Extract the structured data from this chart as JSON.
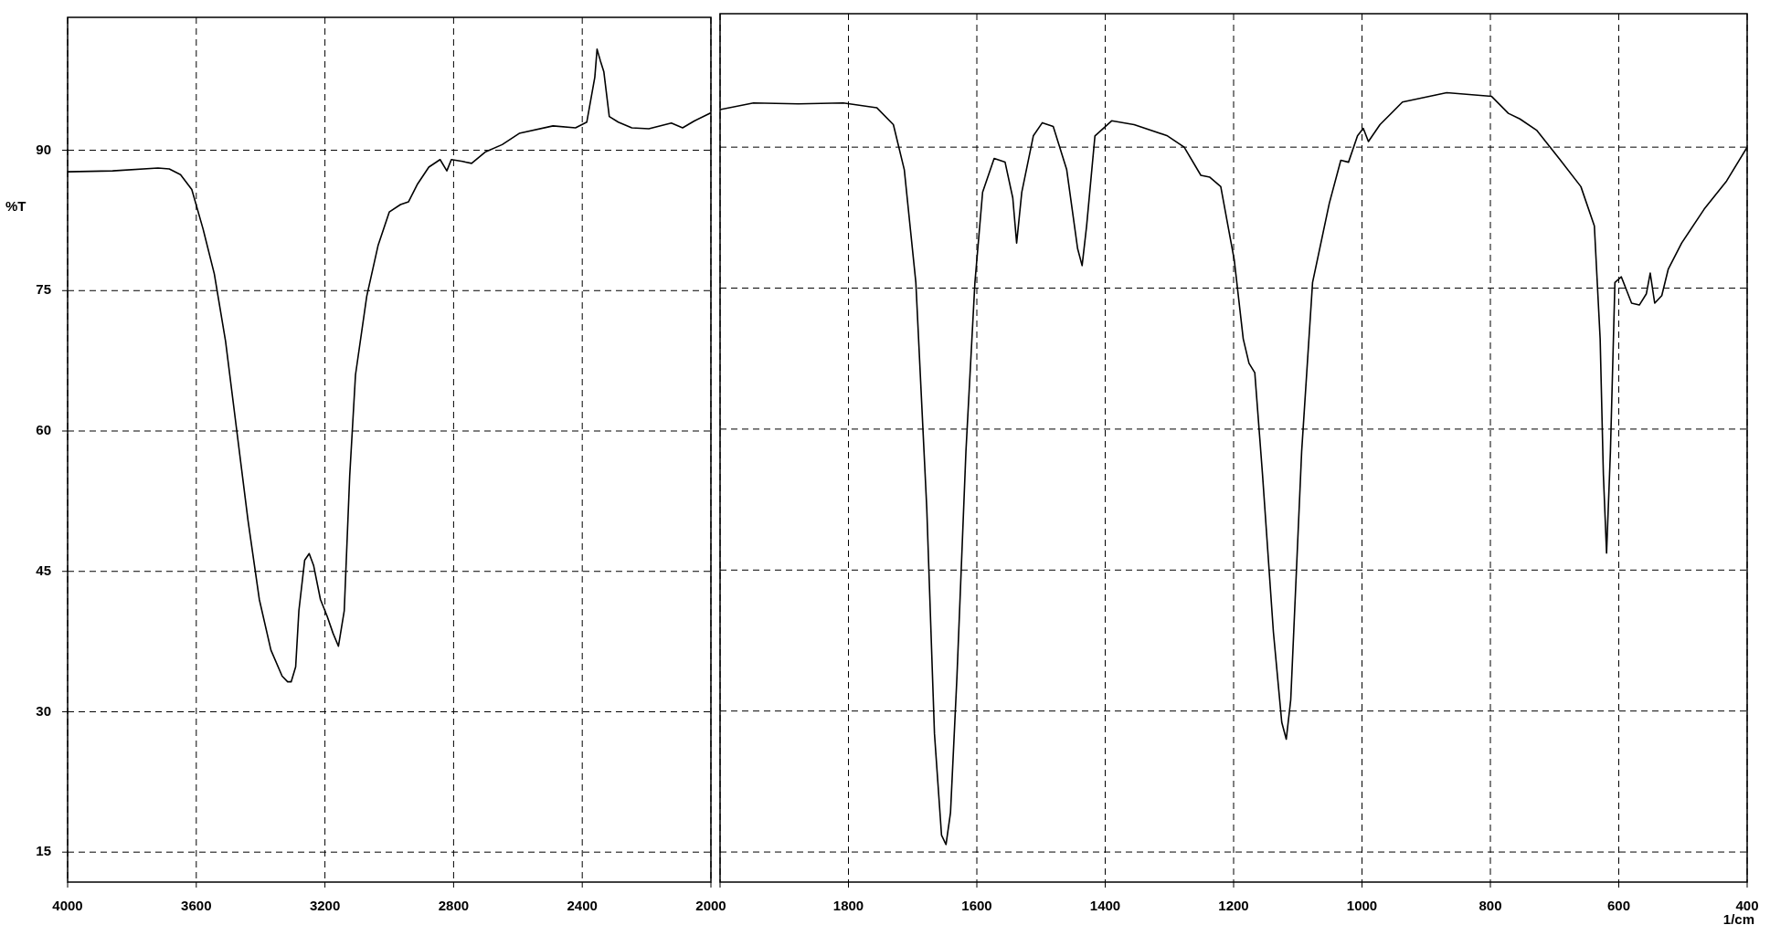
{
  "chart_data": [
    {
      "type": "line",
      "ylabel": "%T",
      "color": "#000000",
      "grid": true,
      "x": [
        4000,
        3860,
        3719,
        3684,
        3649,
        3614,
        3579,
        3544,
        3509,
        3474,
        3439,
        3404,
        3368,
        3333,
        3316,
        3305,
        3291,
        3281,
        3263,
        3249,
        3235,
        3214,
        3193,
        3175,
        3158,
        3140,
        3123,
        3105,
        3070,
        3035,
        3000,
        2965,
        2940,
        2912,
        2877,
        2842,
        2821,
        2807,
        2772,
        2744,
        2702,
        2649,
        2596,
        2491,
        2421,
        2386,
        2361,
        2354,
        2344,
        2333,
        2316,
        2288,
        2246,
        2193,
        2123,
        2088,
        2053,
        2000
      ],
      "values": [
        87.7,
        87.8,
        88.1,
        88.0,
        87.4,
        85.8,
        81.6,
        76.8,
        69.6,
        60.0,
        50.4,
        42.0,
        36.6,
        33.8,
        33.2,
        33.2,
        34.8,
        40.8,
        46.2,
        46.9,
        45.6,
        42.0,
        40.2,
        38.4,
        37.0,
        40.8,
        55.2,
        66.0,
        74.4,
        79.8,
        83.4,
        84.2,
        84.5,
        86.4,
        88.2,
        89.0,
        87.8,
        89.0,
        88.8,
        88.6,
        89.8,
        90.6,
        91.8,
        92.6,
        92.4,
        93.0,
        97.8,
        100.8,
        99.6,
        98.4,
        93.6,
        93.0,
        92.4,
        92.3,
        92.9,
        92.4,
        93.1,
        94.0
      ],
      "xlim": [
        4000,
        2000
      ],
      "xticks": [
        4000,
        3600,
        3200,
        2800,
        2400,
        2000
      ],
      "ylim": [
        11.8,
        104.2
      ],
      "yticks": [
        15,
        30,
        45,
        60,
        75,
        90
      ]
    },
    {
      "type": "line",
      "xlabel": "1/cm",
      "color": "#000000",
      "grid": true,
      "tick_labels": "x",
      "x": [
        2000,
        1948,
        1878,
        1808,
        1756,
        1730,
        1713,
        1695,
        1678,
        1666,
        1655,
        1648,
        1641,
        1631,
        1617,
        1603,
        1591,
        1573,
        1556,
        1544,
        1538,
        1530,
        1512,
        1498,
        1481,
        1460,
        1443,
        1436,
        1429,
        1416,
        1390,
        1355,
        1303,
        1277,
        1251,
        1237,
        1220,
        1199,
        1185,
        1176,
        1167,
        1155,
        1138,
        1125,
        1118,
        1111,
        1094,
        1077,
        1051,
        1033,
        1021,
        1007,
        998,
        990,
        972,
        937,
        868,
        798,
        772,
        754,
        728,
        693,
        659,
        638,
        629,
        624,
        619,
        613,
        606,
        596,
        580,
        568,
        557,
        551,
        544,
        533,
        523,
        502,
        467,
        432,
        400
      ],
      "values": [
        94.0,
        94.7,
        94.6,
        94.7,
        94.2,
        92.4,
        87.6,
        75.6,
        51.6,
        27.6,
        16.8,
        15.8,
        19.2,
        33.6,
        57.6,
        75.6,
        85.2,
        88.8,
        88.4,
        84.6,
        79.8,
        85.2,
        91.2,
        92.6,
        92.2,
        87.6,
        79.2,
        77.4,
        81.6,
        91.2,
        92.8,
        92.4,
        91.2,
        90.0,
        87.0,
        86.8,
        85.8,
        78.0,
        69.6,
        67.0,
        66.0,
        55.2,
        38.4,
        28.8,
        27.0,
        31.2,
        57.6,
        75.6,
        84.0,
        88.6,
        88.4,
        91.2,
        92.0,
        90.6,
        92.4,
        94.8,
        95.8,
        95.4,
        93.6,
        93.0,
        91.8,
        88.8,
        85.8,
        81.6,
        69.6,
        55.2,
        46.8,
        57.6,
        75.6,
        76.2,
        73.4,
        73.2,
        74.4,
        76.6,
        73.4,
        74.2,
        77.0,
        79.8,
        83.4,
        86.4,
        90.0
      ],
      "xlim": [
        2000,
        400
      ],
      "xticks": [
        {
          "value": 2000,
          "label": null
        },
        1800,
        1600,
        1400,
        1200,
        1000,
        800,
        600,
        400
      ],
      "ylim": [
        11.8,
        104.2
      ],
      "yticks": [
        15,
        30,
        45,
        60,
        75,
        90
      ]
    }
  ]
}
